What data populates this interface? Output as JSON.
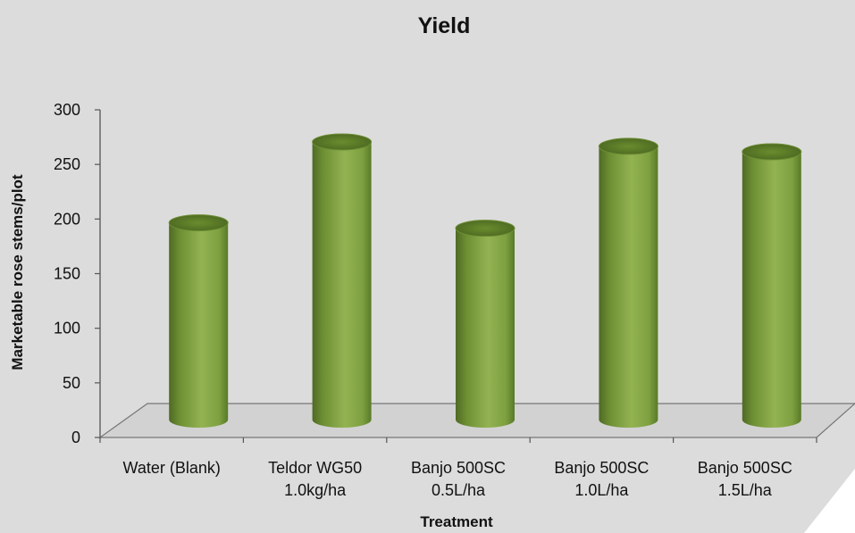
{
  "chart_data": {
    "type": "bar",
    "title": "Yield",
    "xlabel": "Treatment",
    "ylabel": "Marketable rose stems/plot",
    "ylim": [
      0,
      300
    ],
    "yticks": [
      "0",
      "50",
      "100",
      "150",
      "200",
      "250",
      "300"
    ],
    "categories": [
      [
        "Water (Blank)"
      ],
      [
        "Teldor WG50",
        "1.0kg/ha"
      ],
      [
        "Banjo 500SC",
        "0.5L/ha"
      ],
      [
        "Banjo 500SC",
        "1.0L/ha"
      ],
      [
        "Banjo 500SC",
        "1.5L/ha"
      ]
    ],
    "series": [
      {
        "values": [
          190,
          264,
          185,
          260,
          255
        ]
      }
    ],
    "colors": {
      "background": "#dcdcdc",
      "bar_dark": "#4f6a24",
      "bar_mid": "#7ea040",
      "bar_light": "#93b352",
      "bar_top": "#5a7a26",
      "axis": "#555555"
    },
    "grid": false,
    "legend": "none"
  }
}
